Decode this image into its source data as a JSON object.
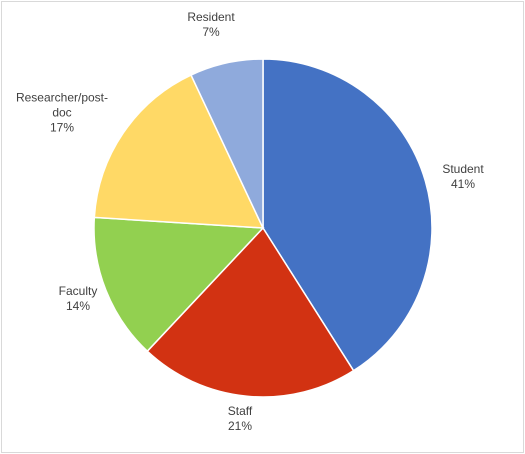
{
  "chart_data": {
    "type": "pie",
    "categories": [
      "Student",
      "Staff",
      "Faculty",
      "Researcher/post-doc",
      "Resident"
    ],
    "values": [
      41,
      21,
      14,
      17,
      7
    ],
    "value_labels": [
      "41%",
      "21%",
      "14%",
      "17%",
      "7%"
    ],
    "colors": [
      "#4472c4",
      "#d23212",
      "#92d050",
      "#ffd966",
      "#8faadc"
    ]
  }
}
